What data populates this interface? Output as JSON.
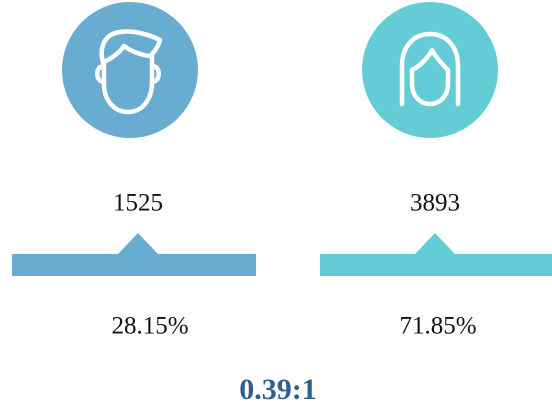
{
  "groups": [
    {
      "count": "1525",
      "percent": "28.15%"
    },
    {
      "count": "3893",
      "percent": "71.85%"
    }
  ],
  "ratio": "0.39:1"
}
